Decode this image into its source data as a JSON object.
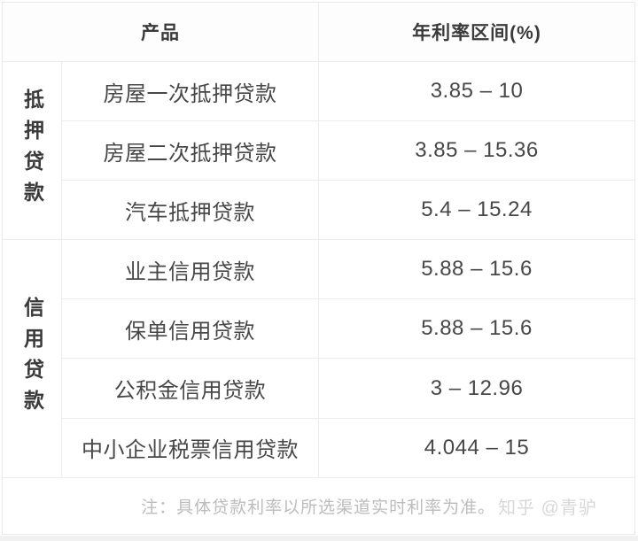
{
  "table": {
    "header": {
      "product": "产品",
      "rate": "年利率区间(%)"
    },
    "groups": [
      {
        "label": "抵押贷款",
        "row_span": 3
      },
      {
        "label": "信用贷款",
        "row_span": 4
      }
    ],
    "rows": [
      {
        "product": "房屋一次抵押贷款",
        "rate": "3.85 – 10"
      },
      {
        "product": "房屋二次抵押贷款",
        "rate": "3.85 – 15.36"
      },
      {
        "product": "汽车抵押贷款",
        "rate": "5.4 – 15.24"
      },
      {
        "product": "业主信用贷款",
        "rate": "5.88 – 15.6"
      },
      {
        "product": "保单信用贷款",
        "rate": "5.88 – 15.6"
      },
      {
        "product": "公积金信用贷款",
        "rate": "3 – 12.96"
      },
      {
        "product": "中小企业税票信用贷款",
        "rate": "4.044 – 15"
      }
    ],
    "footer": {
      "note": "注：具体贷款利率以所选渠道实时利率为准。",
      "watermark": "知乎 @青驴"
    }
  },
  "colors": {
    "border": "#ececec",
    "outer_border": "#e9e9e9",
    "header_text": "#3a3a3a",
    "cell_text": "#474747",
    "note_text": "#bcbcbc",
    "watermark_text": "#d8d8d8",
    "page_bottom_strip": "#f1f1f2"
  }
}
